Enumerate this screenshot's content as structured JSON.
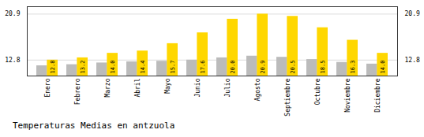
{
  "chart_data": {
    "type": "bar",
    "title": "Temperaturas Medias en antzuola",
    "categories": [
      "Enero",
      "Febrero",
      "Marzo",
      "Abril",
      "Mayo",
      "Junio",
      "Julio",
      "Agosto",
      "Septiembre",
      "Octubre",
      "Noviembre",
      "Diciembre"
    ],
    "series": [
      {
        "color": "#BBBBBB",
        "values": [
          11.8,
          12.0,
          12.3,
          12.5,
          12.6,
          12.8,
          13.2,
          13.5,
          13.3,
          12.9,
          12.4,
          12.1
        ]
      },
      {
        "color": "#FFD700",
        "values": [
          12.8,
          13.2,
          14.0,
          14.4,
          15.7,
          17.6,
          20.0,
          20.9,
          20.5,
          18.5,
          16.3,
          14.0
        ],
        "data_labels": true,
        "value_labels": [
          "12.8",
          "13.2",
          "14.0",
          "14.4",
          "15.7",
          "17.6",
          "20.0",
          "20.9",
          "20.5",
          "18.5",
          "16.3",
          "14.0"
        ]
      }
    ],
    "ylim": [
      10.0,
      22.2
    ],
    "yticks": [
      12.8,
      20.9
    ],
    "grid": true
  }
}
